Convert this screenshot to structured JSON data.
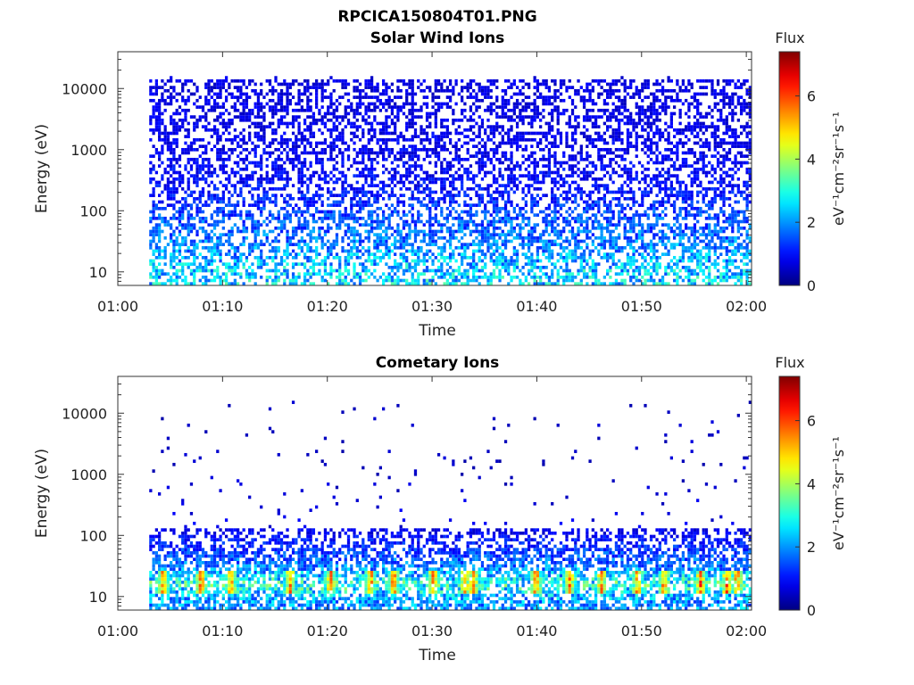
{
  "figure": {
    "filename": "RPCICA150804T01.PNG"
  },
  "chart_data": [
    {
      "type": "heatmap",
      "title": "Solar Wind Ions",
      "xlabel": "Time",
      "ylabel": "Energy (eV)",
      "x_ticks": [
        "01:00",
        "01:10",
        "01:20",
        "01:30",
        "01:40",
        "01:50",
        "02:00"
      ],
      "x_tick_minutes": [
        0,
        10,
        20,
        30,
        40,
        50,
        60
      ],
      "xlim_minutes": [
        0,
        60.5
      ],
      "yscale": "log",
      "ylim": [
        6,
        40000
      ],
      "y_ticks": [
        "10",
        "100",
        "1000",
        "10000"
      ],
      "y_tick_values": [
        10,
        100,
        1000,
        10000
      ],
      "data_start_minute": 3,
      "data_end_minute": 60.5,
      "typical_flux_by_energy": [
        {
          "energy_eV": 8,
          "flux": 2.5
        },
        {
          "energy_eV": 15,
          "flux": 2.2
        },
        {
          "energy_eV": 30,
          "flux": 1.8
        },
        {
          "energy_eV": 70,
          "flux": 1.5
        },
        {
          "energy_eV": 200,
          "flux": 1.0
        },
        {
          "energy_eV": 1000,
          "flux": 0.8
        },
        {
          "energy_eV": 10000,
          "flux": 0.7
        }
      ],
      "colorbar": {
        "label_top": "Flux",
        "units": "eV⁻¹cm⁻²sr⁻¹s⁻¹",
        "ticks": [
          "0",
          "2",
          "4",
          "6"
        ],
        "tick_values": [
          0,
          2,
          4,
          6
        ],
        "range": [
          0,
          7.4
        ],
        "colormap": "jet"
      }
    },
    {
      "type": "heatmap",
      "title": "Cometary Ions",
      "xlabel": "Time",
      "ylabel": "Energy (eV)",
      "x_ticks": [
        "01:00",
        "01:10",
        "01:20",
        "01:30",
        "01:40",
        "01:50",
        "02:00"
      ],
      "x_tick_minutes": [
        0,
        10,
        20,
        30,
        40,
        50,
        60
      ],
      "xlim_minutes": [
        0,
        60.5
      ],
      "yscale": "log",
      "ylim": [
        6,
        40000
      ],
      "y_ticks": [
        "10",
        "100",
        "1000",
        "10000"
      ],
      "y_tick_values": [
        10,
        100,
        1000,
        10000
      ],
      "data_start_minute": 3,
      "data_end_minute": 60.5,
      "enhancement_minutes": [
        4.2,
        7.8,
        10.7,
        16.3,
        20.2,
        24.0,
        26.2,
        30.0,
        33.0,
        33.8,
        39.8,
        43.0,
        46.0,
        49.5,
        52.0,
        55.5,
        58.0,
        59.0
      ],
      "enhancement_energy_range_eV": [
        10,
        25
      ],
      "enhancement_peak_flux": 6.0,
      "typical_flux_by_energy": [
        {
          "energy_eV": 8,
          "flux": 2.0
        },
        {
          "energy_eV": 15,
          "flux": 3.0
        },
        {
          "energy_eV": 25,
          "flux": 2.0
        },
        {
          "energy_eV": 60,
          "flux": 1.2
        },
        {
          "energy_eV": 110,
          "flux": 0.8
        },
        {
          "energy_eV": 1000,
          "flux": 0.5
        }
      ],
      "colorbar": {
        "label_top": "Flux",
        "units": "eV⁻¹cm⁻²sr⁻¹s⁻¹",
        "ticks": [
          "0",
          "2",
          "4",
          "6"
        ],
        "tick_values": [
          0,
          2,
          4,
          6
        ],
        "range": [
          0,
          7.4
        ],
        "colormap": "jet"
      }
    }
  ]
}
